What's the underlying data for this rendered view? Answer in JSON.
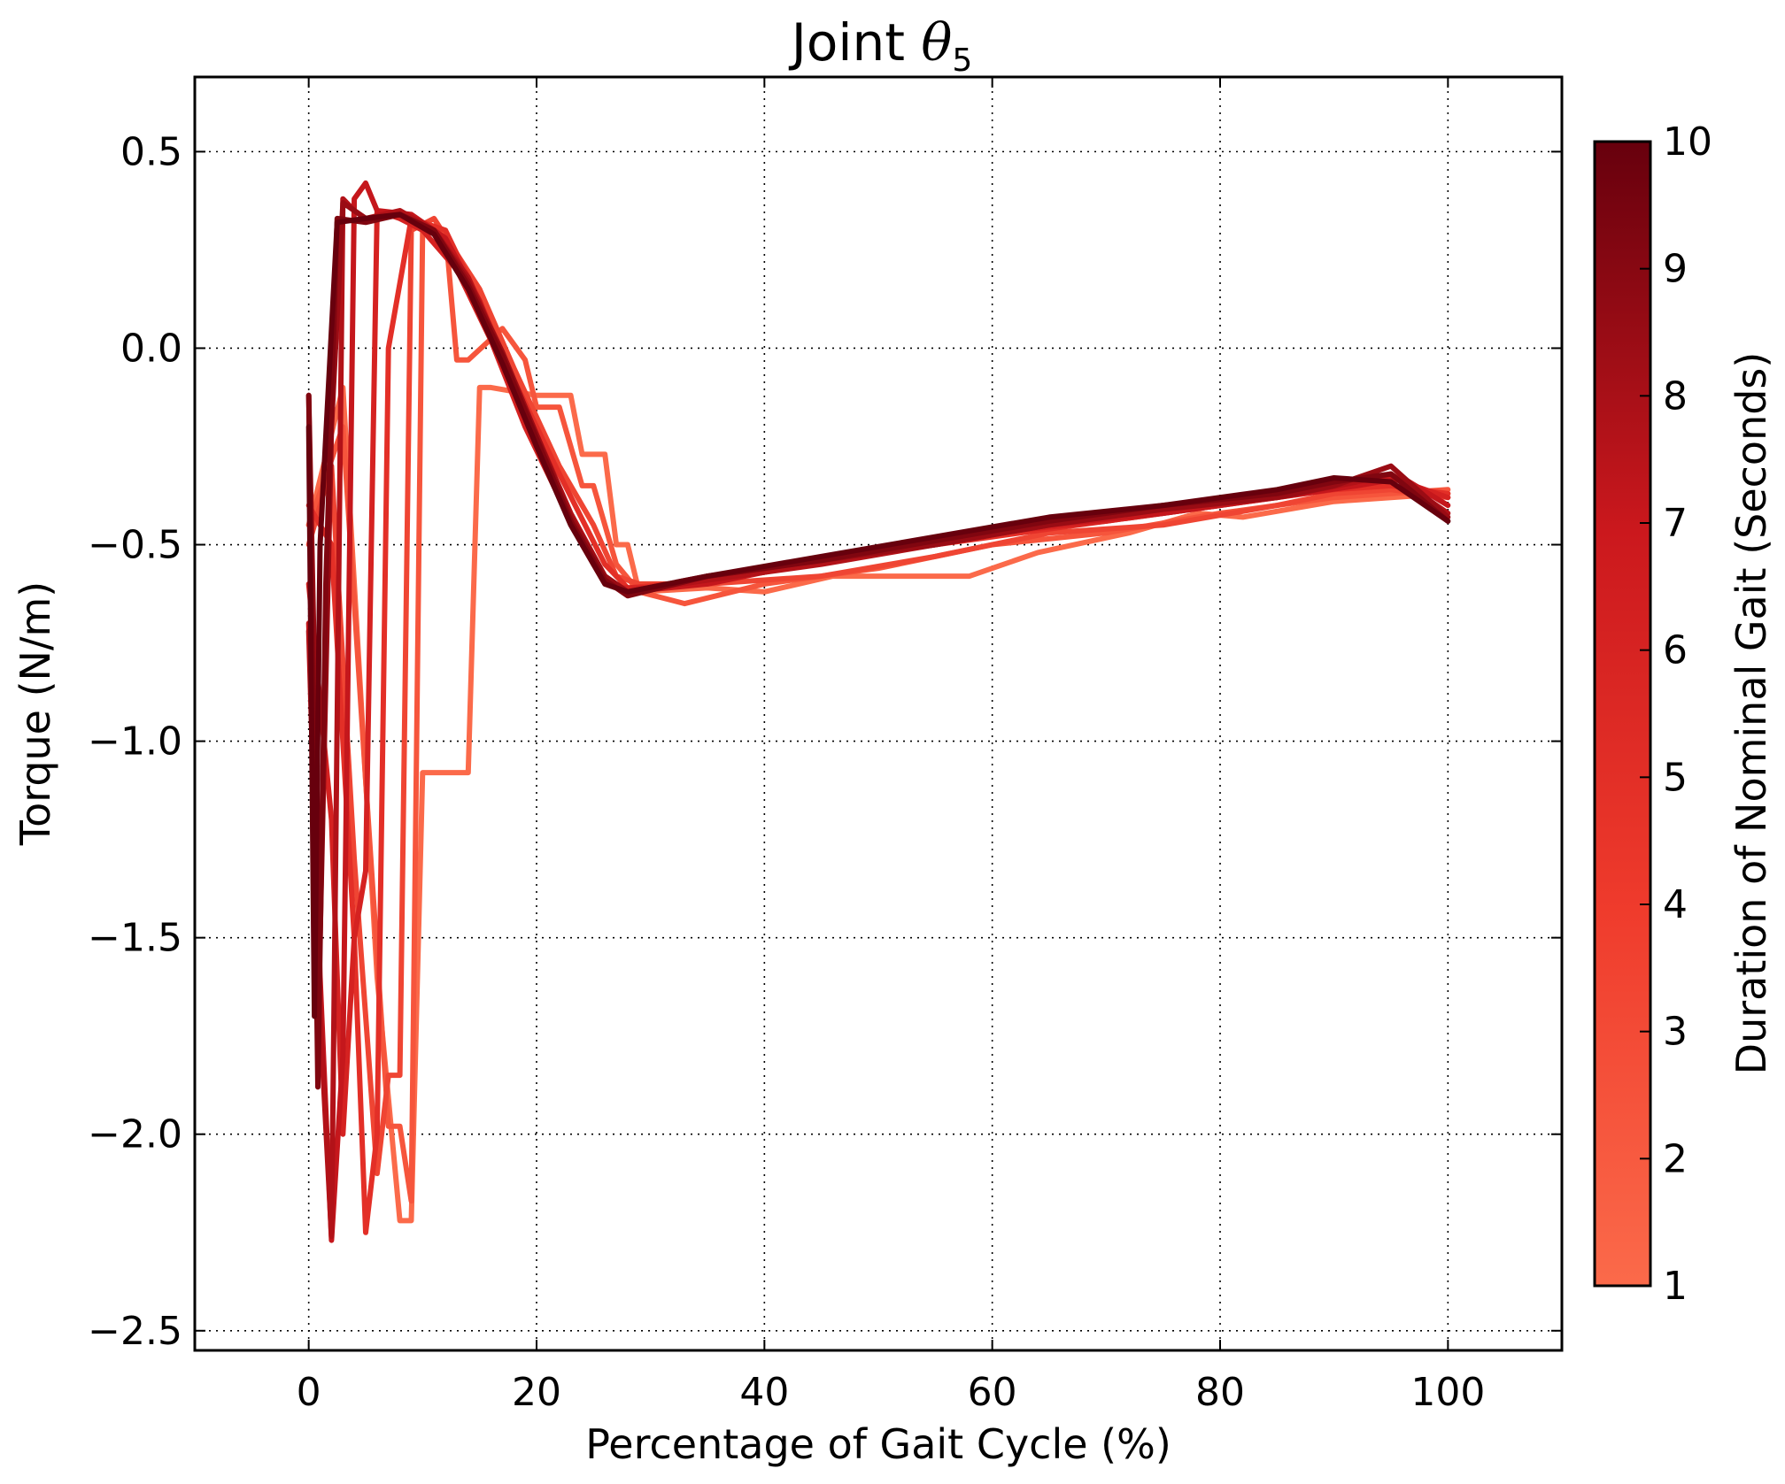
{
  "chart_data": {
    "type": "line",
    "title_prefix": "Joint ",
    "title_symbol": "θ",
    "title_subscript": "5",
    "xlabel": "Percentage of Gait Cycle (%)",
    "ylabel": "Torque (N/m)",
    "xlim": [
      -10,
      110
    ],
    "ylim": [
      -2.55,
      0.69
    ],
    "xticks": [
      0,
      20,
      40,
      60,
      80,
      100
    ],
    "yticks": [
      0.5,
      0.0,
      -0.5,
      -1.0,
      -1.5,
      -2.0,
      -2.5
    ],
    "ytick_labels": [
      "0.5",
      "0.0",
      "−0.5",
      "−1.0",
      "−1.5",
      "−2.0",
      "−2.5"
    ],
    "grid": true,
    "colorbar": {
      "label": "Duration of Nominal Gait (Seconds)",
      "min": 1,
      "max": 10,
      "ticks": [
        1,
        2,
        3,
        4,
        5,
        6,
        7,
        8,
        9,
        10
      ],
      "color_low": "#fb6a4a",
      "color_high": "#67000d"
    },
    "series": [
      {
        "duration": 1,
        "color": "#fb6a4a",
        "x": [
          0,
          3,
          6,
          8,
          9,
          10,
          11,
          14,
          15,
          16,
          20,
          21,
          23,
          24,
          26,
          27,
          28,
          29,
          35,
          40,
          46,
          58,
          64,
          72,
          78,
          82,
          90,
          95,
          100
        ],
        "y": [
          -0.45,
          -0.1,
          -1.6,
          -2.22,
          -2.22,
          -1.08,
          -1.08,
          -1.08,
          -0.1,
          -0.1,
          -0.12,
          -0.12,
          -0.12,
          -0.27,
          -0.27,
          -0.5,
          -0.5,
          -0.62,
          -0.61,
          -0.62,
          -0.58,
          -0.58,
          -0.52,
          -0.47,
          -0.42,
          -0.43,
          -0.39,
          -0.38,
          -0.37
        ]
      },
      {
        "duration": 2,
        "color": "#f6553c",
        "x": [
          0,
          3,
          5,
          7,
          8,
          9,
          10,
          12,
          13,
          14,
          17,
          19,
          20,
          22,
          24,
          25,
          27,
          29,
          33,
          40,
          50,
          60,
          70,
          80,
          90,
          95,
          100
        ],
        "y": [
          -0.45,
          -0.2,
          -1.1,
          -1.98,
          -1.98,
          -2.17,
          0.3,
          0.3,
          -0.03,
          -0.03,
          0.05,
          -0.03,
          -0.15,
          -0.15,
          -0.35,
          -0.35,
          -0.55,
          -0.62,
          -0.65,
          -0.6,
          -0.56,
          -0.5,
          -0.47,
          -0.42,
          -0.38,
          -0.37,
          -0.36
        ]
      },
      {
        "duration": 3,
        "color": "#ef4533",
        "x": [
          0,
          2,
          4,
          6,
          7,
          8,
          9,
          11,
          15,
          18,
          22,
          25,
          27,
          29,
          35,
          45,
          55,
          65,
          75,
          85,
          90,
          95,
          100
        ],
        "y": [
          -0.5,
          -0.3,
          -1.3,
          -2.1,
          -1.85,
          -1.85,
          0.3,
          0.33,
          0.15,
          -0.05,
          -0.3,
          -0.45,
          -0.58,
          -0.6,
          -0.6,
          -0.58,
          -0.53,
          -0.47,
          -0.45,
          -0.4,
          -0.37,
          -0.36,
          -0.38
        ]
      },
      {
        "duration": 4,
        "color": "#e32f27",
        "x": [
          0,
          2,
          4,
          5,
          6,
          7,
          9,
          12,
          15,
          18,
          22,
          26,
          28,
          32,
          40,
          50,
          60,
          70,
          80,
          90,
          95,
          100
        ],
        "y": [
          -0.4,
          -0.5,
          -1.5,
          -2.25,
          -2.0,
          0.0,
          0.33,
          0.3,
          0.12,
          -0.08,
          -0.32,
          -0.55,
          -0.61,
          -0.6,
          -0.57,
          -0.52,
          -0.48,
          -0.44,
          -0.4,
          -0.36,
          -0.35,
          -0.37
        ]
      },
      {
        "duration": 5,
        "color": "#d52221",
        "x": [
          0,
          2,
          3,
          4,
          5,
          6,
          8,
          10,
          13,
          16,
          19,
          22,
          25,
          27,
          30,
          40,
          50,
          60,
          70,
          80,
          90,
          95,
          100
        ],
        "y": [
          -0.6,
          -1.2,
          -2.0,
          -1.5,
          -1.33,
          0.35,
          0.33,
          0.3,
          0.2,
          0.02,
          -0.2,
          -0.38,
          -0.55,
          -0.61,
          -0.61,
          -0.57,
          -0.51,
          -0.47,
          -0.44,
          -0.4,
          -0.35,
          -0.33,
          -0.38
        ]
      },
      {
        "duration": 6,
        "color": "#c5171c",
        "x": [
          0,
          1,
          2,
          3,
          4,
          5,
          6,
          9,
          12,
          15,
          18,
          21,
          24,
          26,
          28,
          35,
          45,
          55,
          65,
          75,
          85,
          92,
          96,
          100
        ],
        "y": [
          -0.7,
          -1.6,
          -2.27,
          -1.8,
          0.38,
          0.42,
          0.35,
          0.34,
          0.28,
          0.12,
          -0.1,
          -0.3,
          -0.5,
          -0.6,
          -0.62,
          -0.6,
          -0.54,
          -0.5,
          -0.45,
          -0.42,
          -0.38,
          -0.35,
          -0.33,
          -0.4
        ]
      },
      {
        "duration": 7,
        "color": "#b21218",
        "x": [
          0,
          1,
          2,
          3,
          4,
          5,
          8,
          11,
          14,
          17,
          20,
          23,
          26,
          28,
          35,
          45,
          55,
          65,
          75,
          85,
          92,
          95,
          100
        ],
        "y": [
          -0.72,
          -1.7,
          -2.26,
          0.38,
          0.35,
          0.33,
          0.35,
          0.3,
          0.18,
          -0.02,
          -0.22,
          -0.42,
          -0.58,
          -0.62,
          -0.59,
          -0.55,
          -0.5,
          -0.45,
          -0.41,
          -0.38,
          -0.34,
          -0.32,
          -0.42
        ]
      },
      {
        "duration": 8,
        "color": "#9a0c14",
        "x": [
          0,
          1,
          2,
          3,
          5,
          8,
          11,
          14,
          17,
          20,
          23,
          26,
          28,
          35,
          45,
          55,
          65,
          75,
          85,
          90,
          95,
          100
        ],
        "y": [
          -0.12,
          -1.5,
          -0.2,
          0.37,
          0.33,
          0.34,
          0.3,
          0.17,
          -0.01,
          -0.22,
          -0.43,
          -0.58,
          -0.62,
          -0.58,
          -0.54,
          -0.5,
          -0.45,
          -0.41,
          -0.38,
          -0.35,
          -0.3,
          -0.43
        ]
      },
      {
        "duration": 9,
        "color": "#800610",
        "x": [
          0,
          0.8,
          1.5,
          2.5,
          5,
          8,
          11,
          14,
          17,
          20,
          23,
          26,
          28,
          35,
          45,
          55,
          65,
          75,
          85,
          90,
          95,
          100
        ],
        "y": [
          -0.12,
          -1.88,
          -0.6,
          0.33,
          0.32,
          0.34,
          0.3,
          0.16,
          -0.02,
          -0.23,
          -0.44,
          -0.59,
          -0.63,
          -0.58,
          -0.54,
          -0.49,
          -0.44,
          -0.4,
          -0.37,
          -0.34,
          -0.32,
          -0.44
        ]
      },
      {
        "duration": 10,
        "color": "#67000d",
        "x": [
          0,
          0.5,
          1,
          2.5,
          5,
          8,
          11,
          14,
          17,
          20,
          23,
          26,
          28,
          35,
          45,
          55,
          65,
          75,
          85,
          90,
          95,
          100
        ],
        "y": [
          -0.2,
          -1.7,
          -0.5,
          0.32,
          0.33,
          0.34,
          0.29,
          0.15,
          -0.04,
          -0.25,
          -0.45,
          -0.6,
          -0.62,
          -0.58,
          -0.53,
          -0.48,
          -0.43,
          -0.4,
          -0.36,
          -0.33,
          -0.34,
          -0.44
        ]
      }
    ]
  }
}
